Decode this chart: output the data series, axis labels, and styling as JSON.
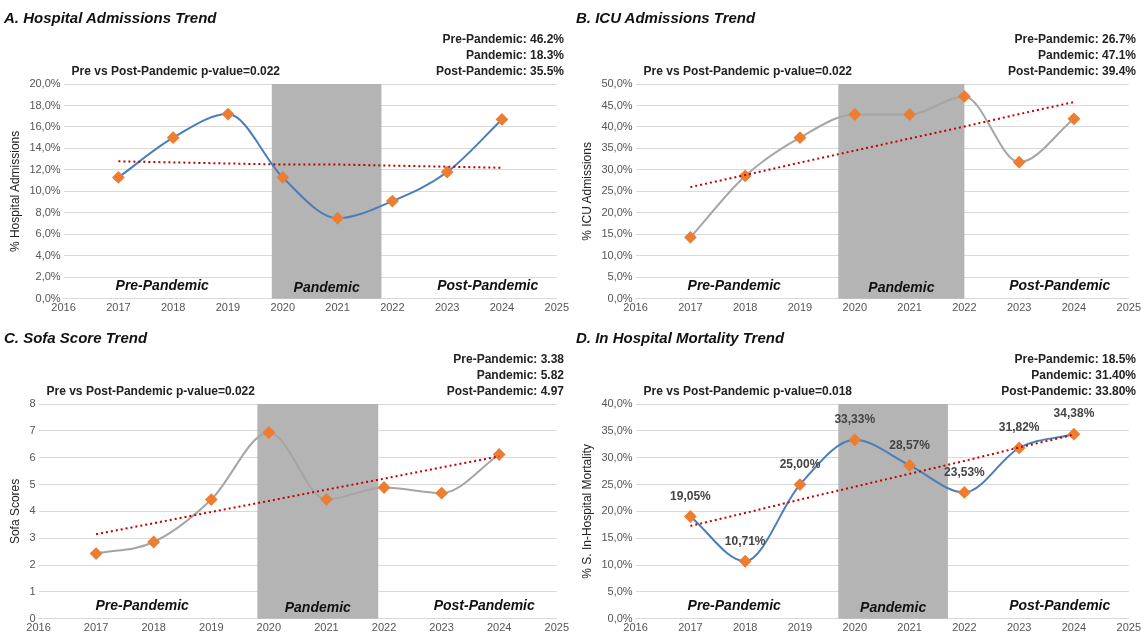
{
  "chart_data": [
    {
      "type": "line",
      "title": "A. Hospital Admissions Trend",
      "ylabel": "% Hospital Admissions",
      "x": [
        2017,
        2018,
        2019,
        2020,
        2021,
        2022,
        2023,
        2024
      ],
      "series": [
        {
          "color": "#4a7ebb",
          "colors": [
            "#ed7d31",
            "#ed7d31",
            "#ed7d31",
            "#ed7d31",
            "#ed7d31",
            "#ed7d31",
            "#ed7d31",
            "#ed7d31"
          ],
          "marker": "diamond",
          "values": [
            11.3,
            15.0,
            17.2,
            11.3,
            7.5,
            9.1,
            11.8,
            16.7
          ]
        },
        {
          "type": "line",
          "color": "#c00000",
          "marker": "none",
          "line_style": "dotted",
          "values": [
            12.8,
            12.7,
            12.6,
            12.5,
            12.5,
            12.4,
            12.3,
            12.2
          ]
        }
      ],
      "xlim": [
        2016,
        2025
      ],
      "xticks": [
        2016,
        2017,
        2018,
        2019,
        2020,
        2021,
        2022,
        2023,
        2024,
        2025
      ],
      "ylim": [
        0,
        20
      ],
      "yticks": [
        {
          "value": 0,
          "label": "0,0%"
        },
        {
          "value": 2,
          "label": "2,0%"
        },
        {
          "value": 4,
          "label": "4,0%"
        },
        {
          "value": 6,
          "label": "6,0%"
        },
        {
          "value": 8,
          "label": "8,0%"
        },
        {
          "value": 10,
          "label": "10,0%"
        },
        {
          "value": 12,
          "label": "12,0%"
        },
        {
          "value": 14,
          "label": "14,0%"
        },
        {
          "value": 16,
          "label": "16,0%"
        },
        {
          "value": 18,
          "label": "18,0%"
        },
        {
          "value": 20,
          "label": "20,0%"
        }
      ],
      "grid": "y",
      "legend": false,
      "bands": [
        {
          "axis": "x",
          "from": 2019.8,
          "to": 2021.8,
          "label": "Pandemic",
          "color": "#b4b4b4"
        }
      ],
      "annotations": [
        "Pre vs Post-Pandemic p-value=0.022",
        "Pre-Pandemic: 46.2%",
        "Pandemic: 18.3%",
        "Post-Pandemic: 35.5%",
        "Pre-Pandemic",
        "Post-Pandemic"
      ]
    },
    {
      "type": "line",
      "title": "B. ICU Admissions Trend",
      "ylabel": "% ICU Admissions",
      "x": [
        2017,
        2018,
        2019,
        2020,
        2021,
        2022,
        2023,
        2024
      ],
      "series": [
        {
          "color": "#a5a5a5",
          "colors": [
            "#ed7d31",
            "#ed7d31",
            "#ed7d31",
            "#ed7d31",
            "#ed7d31",
            "#ed7d31",
            "#ed7d31",
            "#ed7d31"
          ],
          "marker": "diamond",
          "values": [
            14.3,
            28.6,
            37.5,
            42.9,
            42.9,
            47.1,
            31.8,
            41.9
          ]
        },
        {
          "type": "line",
          "color": "#c00000",
          "marker": "none",
          "line_style": "dotted",
          "values": [
            26.0,
            28.8,
            31.7,
            34.5,
            37.3,
            40.1,
            43.0,
            45.8
          ]
        }
      ],
      "xlim": [
        2016,
        2025
      ],
      "xticks": [
        2016,
        2017,
        2018,
        2019,
        2020,
        2021,
        2022,
        2023,
        2024,
        2025
      ],
      "ylim": [
        0,
        50
      ],
      "yticks": [
        {
          "value": 0,
          "label": "0,0%"
        },
        {
          "value": 5,
          "label": "5,0%"
        },
        {
          "value": 10,
          "label": "10,0%"
        },
        {
          "value": 15,
          "label": "15,0%"
        },
        {
          "value": 20,
          "label": "20,0%"
        },
        {
          "value": 25,
          "label": "25,0%"
        },
        {
          "value": 30,
          "label": "30,0%"
        },
        {
          "value": 35,
          "label": "35,0%"
        },
        {
          "value": 40,
          "label": "40,0%"
        },
        {
          "value": 45,
          "label": "45,0%"
        },
        {
          "value": 50,
          "label": "50,0%"
        }
      ],
      "grid": "y",
      "legend": false,
      "bands": [
        {
          "axis": "x",
          "from": 2019.7,
          "to": 2022.0,
          "label": "Pandemic",
          "color": "#b4b4b4"
        }
      ],
      "annotations": [
        "Pre vs Post-Pandemic p-value=0.022",
        "Pre-Pandemic: 26.7%",
        "Pandemic: 47.1%",
        "Post-Pandemic: 39.4%",
        "Pre-Pandemic",
        "Post-Pandemic"
      ]
    },
    {
      "type": "line",
      "title": "C. Sofa Score Trend",
      "ylabel": "Sofa Scores",
      "x": [
        2017,
        2018,
        2019,
        2020,
        2021,
        2022,
        2023,
        2024
      ],
      "series": [
        {
          "color": "#a5a5a5",
          "colors": [
            "#ed7d31",
            "#ed7d31",
            "#ed7d31",
            "#ed7d31",
            "#ed7d31",
            "#ed7d31",
            "#ed7d31",
            "#ed7d31"
          ],
          "marker": "diamond",
          "values": [
            2.43,
            2.86,
            4.44,
            6.94,
            4.45,
            4.89,
            4.68,
            6.12
          ]
        },
        {
          "type": "line",
          "color": "#c00000",
          "marker": "none",
          "line_style": "dotted",
          "values": [
            3.15,
            3.56,
            3.98,
            4.39,
            4.81,
            5.22,
            5.64,
            6.05
          ]
        }
      ],
      "xlim": [
        2016,
        2025
      ],
      "xticks": [
        2016,
        2017,
        2018,
        2019,
        2020,
        2021,
        2022,
        2023,
        2024,
        2025
      ],
      "ylim": [
        0,
        8
      ],
      "yticks": [
        0,
        1,
        2,
        3,
        4,
        5,
        6,
        7,
        8
      ],
      "grid": "y",
      "legend": false,
      "bands": [
        {
          "axis": "x",
          "from": 2019.8,
          "to": 2021.9,
          "label": "Pandemic",
          "color": "#b4b4b4"
        }
      ],
      "annotations": [
        "Pre vs Post-Pandemic p-value=0.022",
        "Pre-Pandemic: 3.38",
        "Pandemic: 5.82",
        "Post-Pandemic: 4.97",
        "Pre-Pandemic",
        "Post-Pandemic"
      ]
    },
    {
      "type": "line",
      "title": "D. In Hospital Mortality Trend",
      "ylabel": "% S. In-Hospital Mortality",
      "x": [
        2017,
        2018,
        2019,
        2020,
        2021,
        2022,
        2023,
        2024
      ],
      "series": [
        {
          "color": "#4a7ebb",
          "colors": [
            "#ed7d31",
            "#ed7d31",
            "#ed7d31",
            "#ed7d31",
            "#ed7d31",
            "#ed7d31",
            "#ed7d31",
            "#ed7d31"
          ],
          "marker": "diamond",
          "values": [
            19.05,
            10.71,
            25.0,
            33.33,
            28.57,
            23.53,
            31.82,
            34.38
          ],
          "value_labels": [
            "19,05%",
            "10,71%",
            "25,00%",
            "33,33%",
            "28,57%",
            "23,53%",
            "31,82%",
            "34,38%"
          ]
        },
        {
          "type": "line",
          "color": "#c00000",
          "marker": "none",
          "line_style": "dotted",
          "values": [
            17.3,
            19.7,
            22.2,
            24.6,
            27.0,
            29.4,
            31.9,
            34.3
          ]
        }
      ],
      "xlim": [
        2016,
        2025
      ],
      "xticks": [
        2016,
        2017,
        2018,
        2019,
        2020,
        2021,
        2022,
        2023,
        2024,
        2025
      ],
      "ylim": [
        0,
        40
      ],
      "yticks": [
        {
          "value": 0,
          "label": "0,0%"
        },
        {
          "value": 5,
          "label": "5,0%"
        },
        {
          "value": 10,
          "label": "10,0%"
        },
        {
          "value": 15,
          "label": "15,0%"
        },
        {
          "value": 20,
          "label": "20,0%"
        },
        {
          "value": 25,
          "label": "25,0%"
        },
        {
          "value": 30,
          "label": "30,0%"
        },
        {
          "value": 35,
          "label": "35,0%"
        },
        {
          "value": 40,
          "label": "40,0%"
        }
      ],
      "grid": "y",
      "legend": false,
      "bands": [
        {
          "axis": "x",
          "from": 2019.7,
          "to": 2021.7,
          "label": "Pandemic",
          "color": "#b4b4b4"
        }
      ],
      "annotations": [
        "Pre vs Post-Pandemic p-value=0.018",
        "Pre-Pandemic: 18.5%",
        "Pandemic: 31.40%",
        "Post-Pandemic: 33.80%",
        "Pre-Pandemic",
        "Post-Pandemic"
      ]
    }
  ]
}
